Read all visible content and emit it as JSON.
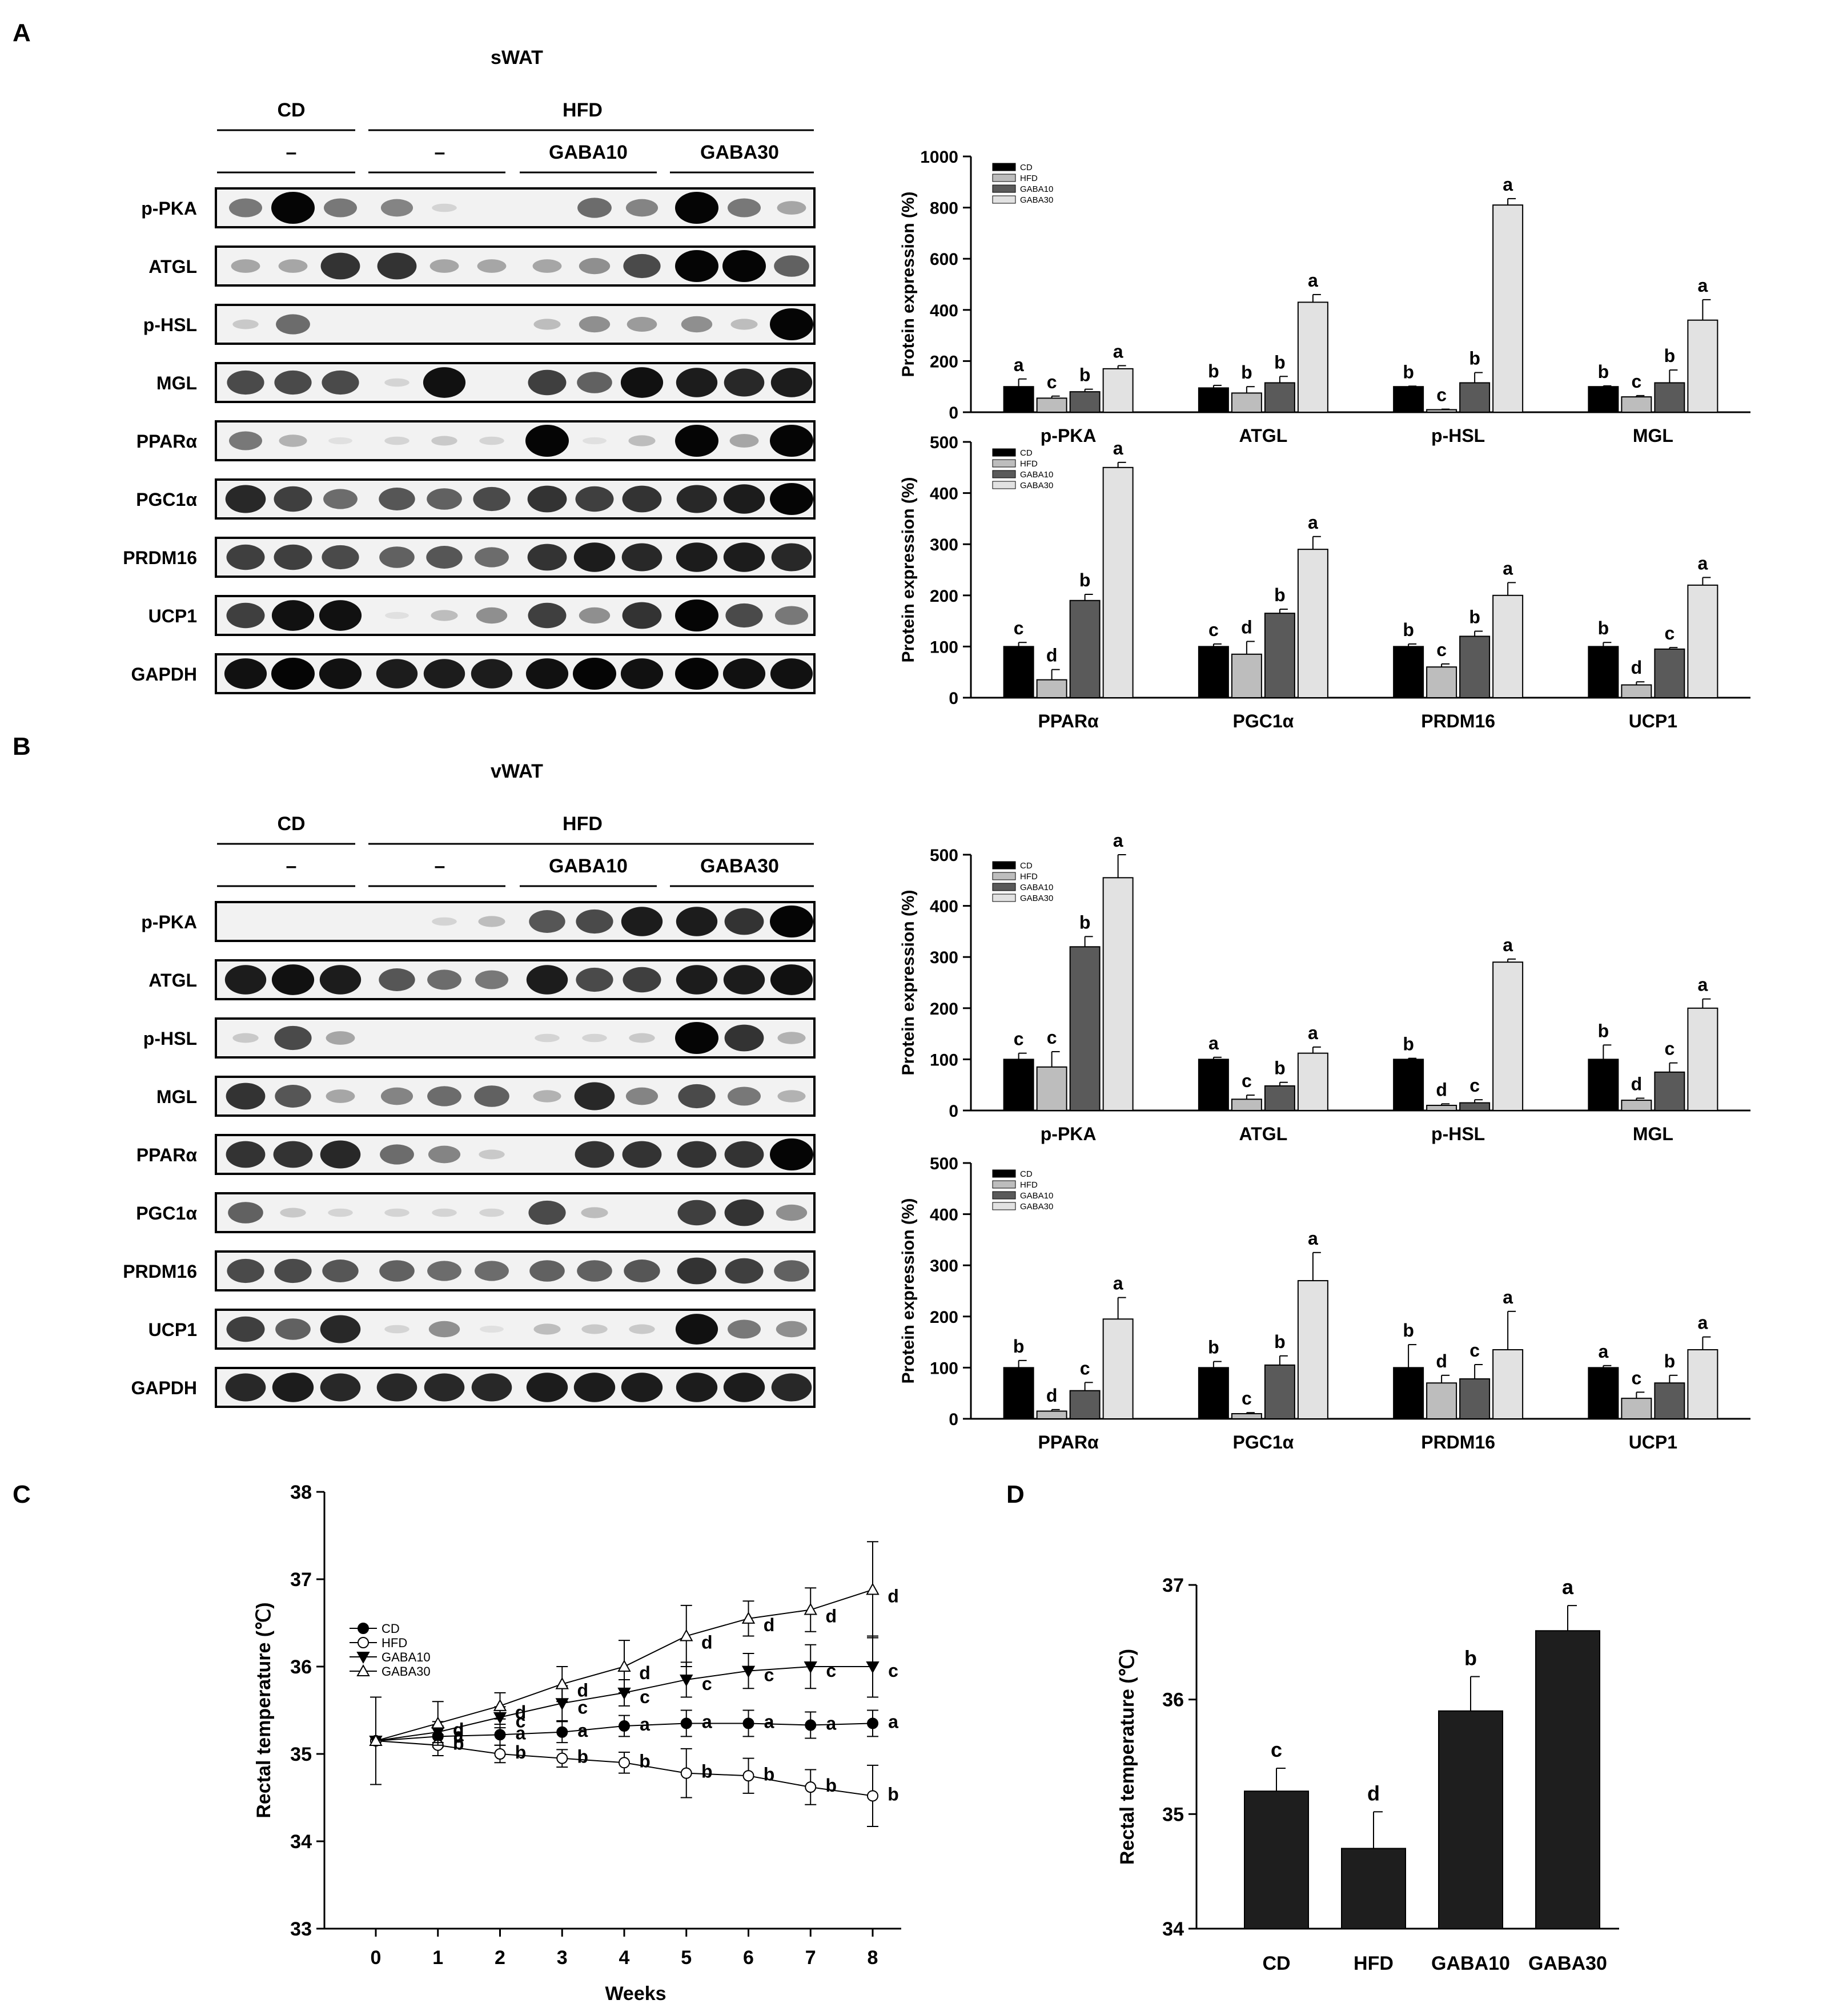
{
  "groups": [
    "CD",
    "HFD",
    "GABA10",
    "GABA30"
  ],
  "colors": {
    "CD": "#000000",
    "HFD": "#bdbdbd",
    "GABA10": "#5a5a5a",
    "GABA30": "#e2e2e2",
    "bar_d": "#1e1e1e"
  },
  "blot_header": {
    "cd": "CD",
    "hfd": "HFD",
    "dash": "–",
    "gaba10": "GABA10",
    "gaba30": "GABA30"
  },
  "bar_ylabel": "Protein expression (%)",
  "panelA": {
    "letter": "A",
    "tissue": "sWAT",
    "blot_rows": [
      "p-PKA",
      "ATGL",
      "p-HSL",
      "MGL",
      "PPARα",
      "PGC1α",
      "PRDM16",
      "UCP1",
      "GAPDH"
    ],
    "intensities": [
      [
        0.5,
        1.0,
        0.5,
        0.45,
        0.1,
        0.0,
        0.0,
        0.55,
        0.45,
        1.0,
        0.5,
        0.3
      ],
      [
        0.3,
        0.3,
        0.8,
        0.8,
        0.3,
        0.3,
        0.3,
        0.4,
        0.7,
        1.0,
        1.0,
        0.6
      ],
      [
        0.15,
        0.55,
        0.0,
        0.0,
        0.0,
        0.0,
        0.2,
        0.4,
        0.35,
        0.4,
        0.2,
        1.0
      ],
      [
        0.7,
        0.7,
        0.7,
        0.1,
        0.95,
        0.0,
        0.75,
        0.6,
        0.95,
        0.9,
        0.85,
        0.9
      ],
      [
        0.5,
        0.25,
        0.05,
        0.1,
        0.15,
        0.1,
        1.0,
        0.05,
        0.2,
        1.0,
        0.3,
        1.0
      ],
      [
        0.85,
        0.75,
        0.55,
        0.65,
        0.6,
        0.7,
        0.8,
        0.75,
        0.8,
        0.85,
        0.9,
        1.0
      ],
      [
        0.75,
        0.75,
        0.7,
        0.6,
        0.65,
        0.55,
        0.8,
        0.9,
        0.85,
        0.9,
        0.9,
        0.85
      ],
      [
        0.75,
        0.95,
        0.95,
        0.05,
        0.2,
        0.4,
        0.75,
        0.4,
        0.8,
        1.0,
        0.7,
        0.5
      ],
      [
        0.95,
        1.0,
        0.95,
        0.9,
        0.9,
        0.9,
        0.95,
        1.0,
        0.95,
        1.0,
        0.95,
        0.95
      ]
    ],
    "chart_top": {
      "type": "bar",
      "ylim": [
        0,
        1000
      ],
      "yticks": [
        0,
        200,
        400,
        600,
        800,
        1000
      ],
      "categories": [
        "p-PKA",
        "ATGL",
        "p-HSL",
        "MGL"
      ],
      "series": [
        {
          "name": "CD",
          "values": [
            100,
            95,
            100,
            100
          ],
          "errors": [
            30,
            10,
            2,
            3
          ]
        },
        {
          "name": "HFD",
          "values": [
            55,
            75,
            10,
            60
          ],
          "errors": [
            8,
            25,
            2,
            5
          ]
        },
        {
          "name": "GABA10",
          "values": [
            80,
            115,
            115,
            115
          ],
          "errors": [
            10,
            25,
            40,
            50
          ]
        },
        {
          "name": "GABA30",
          "values": [
            170,
            430,
            810,
            360
          ],
          "errors": [
            12,
            30,
            25,
            80
          ]
        }
      ],
      "letters": [
        [
          "a",
          "c",
          "b",
          "a"
        ],
        [
          "b",
          "b",
          "b",
          "a"
        ],
        [
          "b",
          "c",
          "b",
          "a"
        ],
        [
          "b",
          "c",
          "b",
          "a"
        ]
      ]
    },
    "chart_bottom": {
      "type": "bar",
      "ylim": [
        0,
        500
      ],
      "yticks": [
        0,
        100,
        200,
        300,
        400,
        500
      ],
      "categories": [
        "PPARα",
        "PGC1α",
        "PRDM16",
        "UCP1"
      ],
      "series": [
        {
          "name": "CD",
          "values": [
            100,
            100,
            100,
            100
          ],
          "errors": [
            8,
            5,
            5,
            8
          ]
        },
        {
          "name": "HFD",
          "values": [
            35,
            85,
            60,
            25
          ],
          "errors": [
            20,
            25,
            6,
            6
          ]
        },
        {
          "name": "GABA10",
          "values": [
            190,
            165,
            120,
            95
          ],
          "errors": [
            12,
            8,
            10,
            3
          ]
        },
        {
          "name": "GABA30",
          "values": [
            450,
            290,
            200,
            220
          ],
          "errors": [
            10,
            25,
            25,
            15
          ]
        }
      ],
      "letters": [
        [
          "c",
          "d",
          "b",
          "a"
        ],
        [
          "c",
          "d",
          "b",
          "a"
        ],
        [
          "b",
          "c",
          "b",
          "a"
        ],
        [
          "b",
          "d",
          "c",
          "a"
        ]
      ]
    }
  },
  "panelB": {
    "letter": "B",
    "tissue": "vWAT",
    "blot_rows": [
      "p-PKA",
      "ATGL",
      "p-HSL",
      "MGL",
      "PPARα",
      "PGC1α",
      "PRDM16",
      "UCP1",
      "GAPDH"
    ],
    "intensities": [
      [
        0.0,
        0.0,
        0.0,
        0.0,
        0.1,
        0.2,
        0.65,
        0.7,
        0.9,
        0.9,
        0.8,
        1.0
      ],
      [
        0.9,
        0.95,
        0.9,
        0.65,
        0.55,
        0.5,
        0.9,
        0.7,
        0.75,
        0.9,
        0.9,
        0.95
      ],
      [
        0.15,
        0.7,
        0.3,
        0.0,
        0.0,
        0.0,
        0.1,
        0.1,
        0.15,
        1.0,
        0.8,
        0.25
      ],
      [
        0.8,
        0.65,
        0.3,
        0.45,
        0.55,
        0.6,
        0.25,
        0.85,
        0.45,
        0.7,
        0.5,
        0.25
      ],
      [
        0.8,
        0.8,
        0.85,
        0.55,
        0.45,
        0.15,
        0.0,
        0.8,
        0.8,
        0.8,
        0.8,
        1.0
      ],
      [
        0.6,
        0.15,
        0.1,
        0.1,
        0.1,
        0.1,
        0.7,
        0.2,
        0.0,
        0.75,
        0.8,
        0.4
      ],
      [
        0.7,
        0.7,
        0.65,
        0.6,
        0.55,
        0.55,
        0.6,
        0.6,
        0.65,
        0.8,
        0.75,
        0.6
      ],
      [
        0.75,
        0.6,
        0.85,
        0.1,
        0.4,
        0.05,
        0.2,
        0.15,
        0.15,
        0.95,
        0.5,
        0.4
      ],
      [
        0.85,
        0.9,
        0.85,
        0.85,
        0.85,
        0.85,
        0.9,
        0.9,
        0.9,
        0.9,
        0.9,
        0.85
      ]
    ],
    "chart_top": {
      "type": "bar",
      "ylim": [
        0,
        500
      ],
      "yticks": [
        0,
        100,
        200,
        300,
        400,
        500
      ],
      "categories": [
        "p-PKA",
        "ATGL",
        "p-HSL",
        "MGL"
      ],
      "series": [
        {
          "name": "CD",
          "values": [
            100,
            100,
            100,
            100
          ],
          "errors": [
            12,
            4,
            2,
            28
          ]
        },
        {
          "name": "HFD",
          "values": [
            85,
            22,
            10,
            20
          ],
          "errors": [
            30,
            8,
            3,
            4
          ]
        },
        {
          "name": "GABA10",
          "values": [
            320,
            48,
            15,
            75
          ],
          "errors": [
            20,
            7,
            6,
            18
          ]
        },
        {
          "name": "GABA30",
          "values": [
            455,
            112,
            290,
            200
          ],
          "errors": [
            45,
            12,
            6,
            18
          ]
        }
      ],
      "letters": [
        [
          "c",
          "c",
          "b",
          "a"
        ],
        [
          "a",
          "c",
          "b",
          "a"
        ],
        [
          "b",
          "d",
          "c",
          "a"
        ],
        [
          "b",
          "d",
          "c",
          "a"
        ]
      ]
    },
    "chart_bottom": {
      "type": "bar",
      "ylim": [
        0,
        500
      ],
      "yticks": [
        0,
        100,
        200,
        300,
        400,
        500
      ],
      "categories": [
        "PPARα",
        "PGC1α",
        "PRDM16",
        "UCP1"
      ],
      "series": [
        {
          "name": "CD",
          "values": [
            100,
            100,
            100,
            100
          ],
          "errors": [
            14,
            12,
            45,
            4
          ]
        },
        {
          "name": "HFD",
          "values": [
            15,
            10,
            70,
            40
          ],
          "errors": [
            3,
            2,
            15,
            12
          ]
        },
        {
          "name": "GABA10",
          "values": [
            55,
            105,
            78,
            70
          ],
          "errors": [
            16,
            18,
            28,
            15
          ]
        },
        {
          "name": "GABA30",
          "values": [
            195,
            270,
            135,
            135
          ],
          "errors": [
            42,
            55,
            75,
            25
          ]
        }
      ],
      "letters": [
        [
          "b",
          "d",
          "c",
          "a"
        ],
        [
          "b",
          "c",
          "b",
          "a"
        ],
        [
          "b",
          "d",
          "c",
          "a"
        ],
        [
          "a",
          "c",
          "b",
          "a"
        ]
      ]
    }
  },
  "panelC": {
    "letter": "C",
    "chart_data": {
      "type": "line",
      "xlabel": "Weeks",
      "ylabel": "Rectal temperature (℃)",
      "x": [
        0,
        1,
        2,
        3,
        4,
        5,
        6,
        7,
        8
      ],
      "ylim": [
        33,
        38
      ],
      "yticks": [
        33,
        34,
        35,
        36,
        37,
        38
      ],
      "series": [
        {
          "name": "CD",
          "marker": "filled-circle",
          "values": [
            35.15,
            35.2,
            35.22,
            35.25,
            35.32,
            35.35,
            35.35,
            35.33,
            35.35
          ],
          "errors": [
            0.5,
            0.12,
            0.12,
            0.12,
            0.12,
            0.15,
            0.15,
            0.15,
            0.15
          ]
        },
        {
          "name": "HFD",
          "marker": "open-circle",
          "values": [
            35.15,
            35.1,
            35.0,
            34.95,
            34.9,
            34.78,
            34.75,
            34.62,
            34.52
          ],
          "errors": [
            0.5,
            0.12,
            0.1,
            0.1,
            0.12,
            0.28,
            0.2,
            0.2,
            0.35
          ]
        },
        {
          "name": "GABA10",
          "marker": "filled-triangle-down",
          "values": [
            35.15,
            35.25,
            35.42,
            35.58,
            35.7,
            35.85,
            35.95,
            36.0,
            36.0
          ],
          "errors": [
            0.5,
            0.12,
            0.12,
            0.2,
            0.15,
            0.2,
            0.2,
            0.25,
            0.35
          ]
        },
        {
          "name": "GABA30",
          "marker": "open-triangle-up",
          "values": [
            35.15,
            35.35,
            35.55,
            35.8,
            36.0,
            36.35,
            36.55,
            36.65,
            36.88
          ],
          "errors": [
            0.5,
            0.25,
            0.15,
            0.2,
            0.3,
            0.35,
            0.2,
            0.25,
            0.55
          ]
        }
      ],
      "letters": [
        [
          "",
          "a",
          "a",
          "a",
          "a",
          "a",
          "a",
          "a",
          "a"
        ],
        [
          "",
          "b",
          "b",
          "b",
          "b",
          "b",
          "b",
          "b",
          "b"
        ],
        [
          "",
          "c",
          "c",
          "c",
          "c",
          "c",
          "c",
          "c",
          "c"
        ],
        [
          "",
          "d",
          "d",
          "d",
          "d",
          "d",
          "d",
          "d",
          "d"
        ]
      ]
    }
  },
  "panelD": {
    "letter": "D",
    "chart_data": {
      "type": "bar",
      "ylabel": "Rectal temperature (℃)",
      "categories": [
        "CD",
        "HFD",
        "GABA10",
        "GABA30"
      ],
      "values": [
        35.2,
        34.7,
        35.9,
        36.6
      ],
      "errors": [
        0.2,
        0.32,
        0.3,
        0.22
      ],
      "letters": [
        "c",
        "d",
        "b",
        "a"
      ],
      "ylim": [
        34,
        37
      ],
      "yticks": [
        34,
        35,
        36,
        37
      ]
    }
  }
}
